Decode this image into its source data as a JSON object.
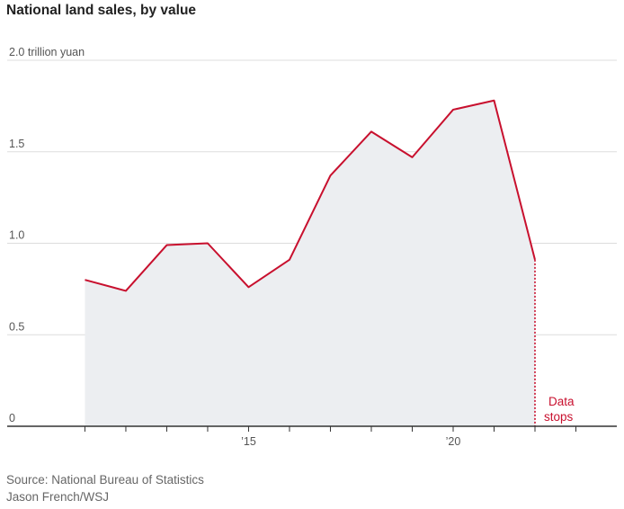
{
  "title": "National land sales, by value",
  "source_lines": [
    "Source: National Bureau of Statistics",
    "Jason French/WSJ"
  ],
  "annotation": [
    "Data",
    "stops"
  ],
  "colors": {
    "line": "#c8102e",
    "area": "#eceef1",
    "grid": "#dddddd",
    "axis": "#333333"
  },
  "chart_data": {
    "type": "area",
    "x": [
      2011,
      2012,
      2013,
      2014,
      2015,
      2016,
      2017,
      2018,
      2019,
      2020,
      2021,
      2022
    ],
    "series": [
      {
        "values": [
          0.8,
          0.74,
          0.99,
          1.0,
          0.76,
          0.91,
          1.37,
          1.61,
          1.47,
          1.73,
          1.78,
          0.91
        ]
      }
    ],
    "y_ticks": [
      {
        "value": 0,
        "label": "0"
      },
      {
        "value": 0.5,
        "label": "0.5"
      },
      {
        "value": 1.0,
        "label": "1.0"
      },
      {
        "value": 1.5,
        "label": "1.5"
      },
      {
        "value": 2.0,
        "label": "2.0 trillion yuan"
      }
    ],
    "x_ticks": [
      {
        "value": 2015,
        "label": "’15"
      },
      {
        "value": 2020,
        "label": "’20"
      }
    ],
    "x_minor_ticks": [
      2011,
      2012,
      2013,
      2014,
      2015,
      2016,
      2017,
      2018,
      2019,
      2020,
      2021,
      2022,
      2023
    ],
    "xlim": [
      2009.1,
      2024
    ],
    "ylim": [
      0,
      2.0
    ],
    "grid": true,
    "data_stops_at": 2022
  }
}
